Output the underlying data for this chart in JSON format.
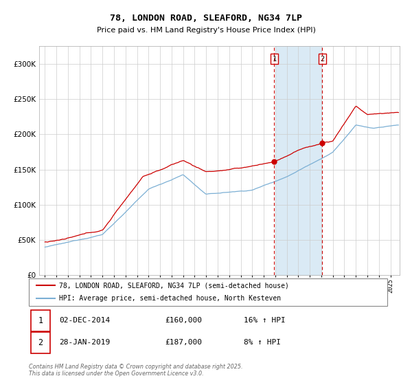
{
  "title": "78, LONDON ROAD, SLEAFORD, NG34 7LP",
  "subtitle": "Price paid vs. HM Land Registry's House Price Index (HPI)",
  "legend_property": "78, LONDON ROAD, SLEAFORD, NG34 7LP (semi-detached house)",
  "legend_hpi": "HPI: Average price, semi-detached house, North Kesteven",
  "transaction1_date": "02-DEC-2014",
  "transaction1_price": 160000,
  "transaction1_hpi": "16% ↑ HPI",
  "transaction2_date": "28-JAN-2019",
  "transaction2_price": 187000,
  "transaction2_hpi": "8% ↑ HPI",
  "footer1": "Contains HM Land Registry data © Crown copyright and database right 2025.",
  "footer2": "This data is licensed under the Open Government Licence v3.0.",
  "property_color": "#cc0000",
  "hpi_color": "#7bafd4",
  "shade_color": "#daeaf5",
  "vline_color": "#cc0000",
  "transaction1_x": 2014.917,
  "transaction2_x": 2019.083,
  "ylim_min": 0,
  "ylim_max": 325000,
  "xlim_start": 1994.5,
  "xlim_end": 2025.8
}
